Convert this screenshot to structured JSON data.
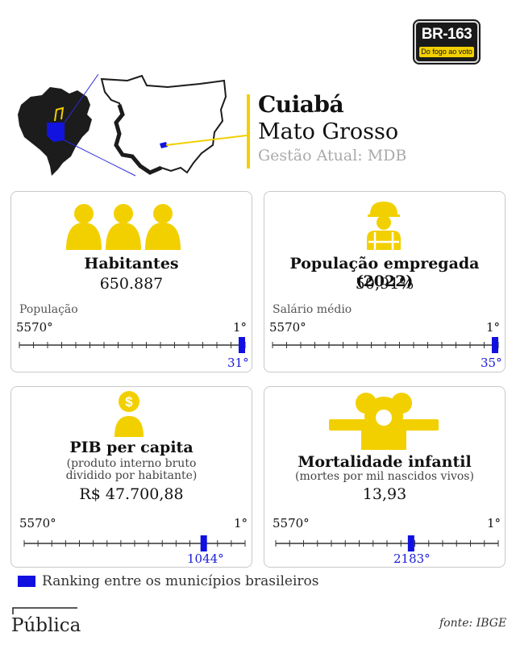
{
  "logo": {
    "top": "BR-163",
    "bottom": "Do fogo ao voto"
  },
  "header": {
    "city": "Cuiabá",
    "state": "Mato Grosso",
    "gestao": "Gestão Atual: MDB"
  },
  "colors": {
    "accent": "#f2d000",
    "rank_marker": "#1010e0",
    "card_border": "#c9c9c9"
  },
  "scale": {
    "worst": "5570°",
    "best": "1°",
    "total": 5570
  },
  "cards": [
    {
      "icon": "people-icon",
      "title": "Habitantes",
      "value": "650.887",
      "metric": "População",
      "rank": 31,
      "rank_label": "31°"
    },
    {
      "icon": "worker-icon",
      "title": "População empregada (2022)",
      "value": "50,91%",
      "metric": "Salário médio",
      "rank": 35,
      "rank_label": "35°"
    },
    {
      "icon": "money-person-icon",
      "title": "PIB per capita",
      "subtitle_1": "(produto interno bruto",
      "subtitle_2": "dividido por habitante)",
      "value": "R$ 47.700,88",
      "rank": 1044,
      "rank_label": "1044°"
    },
    {
      "icon": "baby-icon",
      "title": "Mortalidade infantil",
      "subtitle_1": "(mortes por mil nascidos vivos)",
      "value": "13,93",
      "rank": 2183,
      "rank_label": "2183°"
    }
  ],
  "legend": {
    "text": "Ranking entre os municípios brasileiros"
  },
  "footer": {
    "brand": "Pública",
    "source": "fonte: IBGE"
  }
}
